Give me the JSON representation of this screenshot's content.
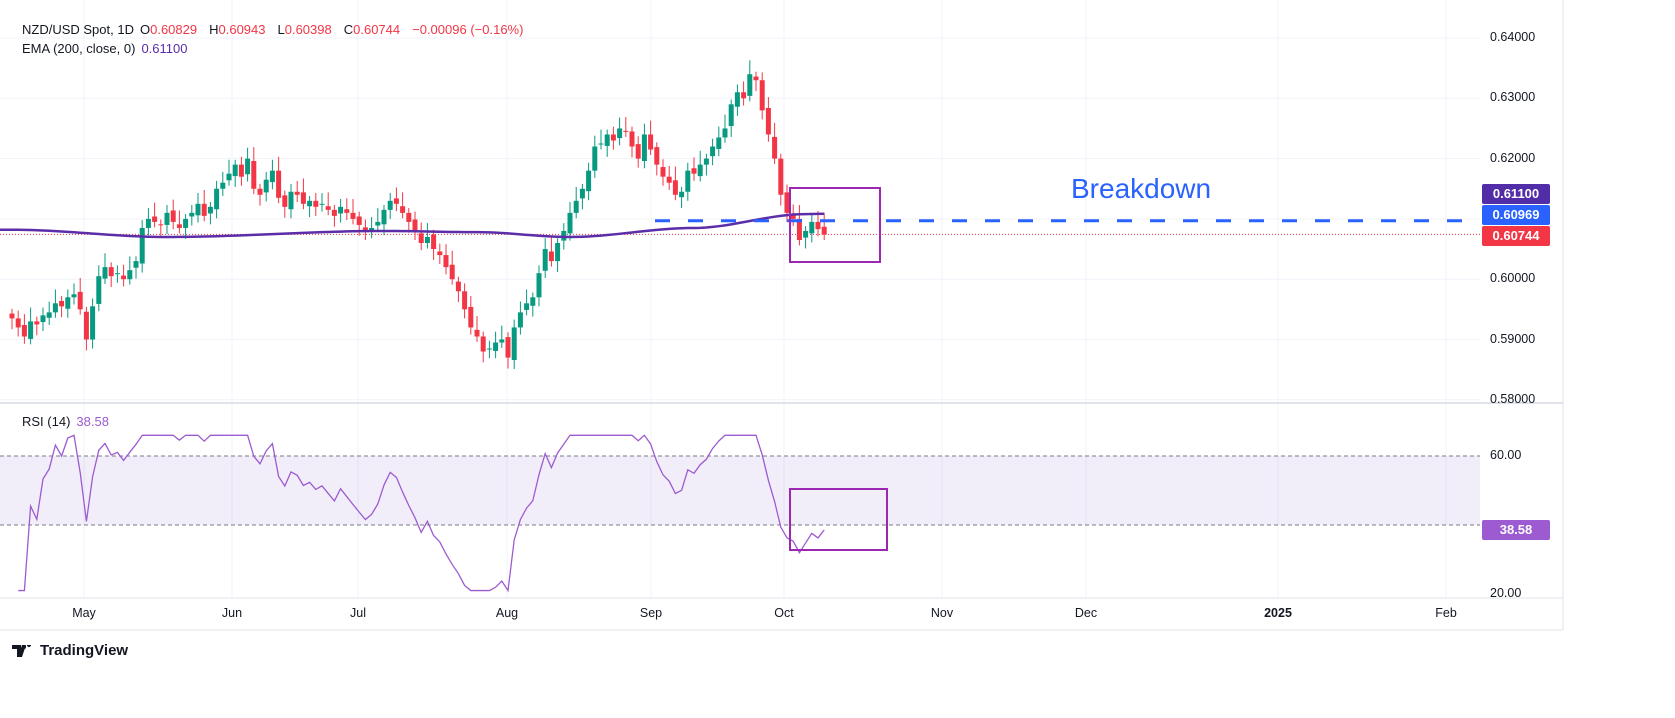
{
  "header": {
    "symbol": "NZD/USD Spot, 1D",
    "open_label": "O",
    "open": "0.60829",
    "high_label": "H",
    "high": "0.60943",
    "low_label": "L",
    "low": "0.60398",
    "close_label": "C",
    "close": "0.60744",
    "change": "−0.00096 (−0.16%)",
    "ema_label": "EMA (200, close, 0)",
    "ema_value": "0.61100",
    "rsi_label": "RSI (14)",
    "rsi_value": "38.58"
  },
  "annotation": "Breakdown",
  "price_tags": {
    "ema": "0.61100",
    "breakdown": "0.60969",
    "last": "0.60744",
    "rsi": "38.58"
  },
  "footer": {
    "brand": "TradingView"
  },
  "colors": {
    "up": "#089981",
    "down": "#f23645",
    "ema": "#5b2da8",
    "rsi": "#9c5bd0",
    "box": "#9c27b0",
    "breakdown": "#2962ff"
  },
  "chart_data": {
    "type": "candlestick",
    "title": "NZD/USD Spot, 1D",
    "start_date": "2024-04-15",
    "closes": [
      0.5935,
      0.592,
      0.5905,
      0.593,
      0.5925,
      0.594,
      0.5945,
      0.596,
      0.5955,
      0.597,
      0.5975,
      0.595,
      0.59,
      0.5955,
      0.6005,
      0.602,
      0.6005,
      0.601,
      0.6,
      0.6015,
      0.603,
      0.6085,
      0.61,
      0.6095,
      0.609,
      0.611,
      0.6095,
      0.6085,
      0.61,
      0.611,
      0.6125,
      0.6105,
      0.612,
      0.615,
      0.616,
      0.6175,
      0.619,
      0.617,
      0.62,
      0.615,
      0.614,
      0.6165,
      0.618,
      0.6135,
      0.612,
      0.6145,
      0.614,
      0.6125,
      0.613,
      0.612,
      0.6125,
      0.6115,
      0.6105,
      0.612,
      0.611,
      0.61,
      0.609,
      0.608,
      0.6085,
      0.6095,
      0.6115,
      0.613,
      0.6125,
      0.611,
      0.6095,
      0.608,
      0.606,
      0.607,
      0.605,
      0.604,
      0.602,
      0.6,
      0.598,
      0.595,
      0.592,
      0.5905,
      0.588,
      0.5885,
      0.5895,
      0.59,
      0.587,
      0.592,
      0.5945,
      0.596,
      0.597,
      0.601,
      0.605,
      0.603,
      0.606,
      0.608,
      0.611,
      0.613,
      0.615,
      0.618,
      0.622,
      0.6225,
      0.624,
      0.623,
      0.625,
      0.6245,
      0.622,
      0.62,
      0.624,
      0.6215,
      0.619,
      0.617,
      0.616,
      0.614,
      0.6145,
      0.618,
      0.6175,
      0.619,
      0.62,
      0.622,
      0.6235,
      0.625,
      0.629,
      0.631,
      0.63,
      0.634,
      0.633,
      0.628,
      0.624,
      0.62,
      0.614,
      0.611,
      0.61,
      0.6065,
      0.608,
      0.6095,
      0.6083,
      0.6074
    ],
    "ema200_keypoints": [
      [
        0,
        0.6082
      ],
      [
        25,
        0.607
      ],
      [
        60,
        0.608
      ],
      [
        75,
        0.6078
      ],
      [
        90,
        0.607
      ],
      [
        110,
        0.6085
      ],
      [
        128,
        0.6108
      ],
      [
        137,
        0.611
      ]
    ],
    "breakdown_level": 0.60969,
    "last_price": 0.60744,
    "price_axis": {
      "ticks": [
        "0.64000",
        "0.63000",
        "0.62000",
        "0.61000",
        "0.60000",
        "0.59000",
        "0.58000"
      ],
      "range": [
        0.58,
        0.64
      ]
    },
    "rsi": {
      "period": 14,
      "last": 38.58,
      "band": [
        40,
        60
      ],
      "ticks": [
        "60.00",
        "20.00"
      ],
      "range": [
        20,
        60
      ]
    },
    "time_axis": [
      "May",
      "Jun",
      "Jul",
      "Aug",
      "Sep",
      "Oct",
      "Nov",
      "Dec",
      "2025",
      "Feb"
    ]
  }
}
